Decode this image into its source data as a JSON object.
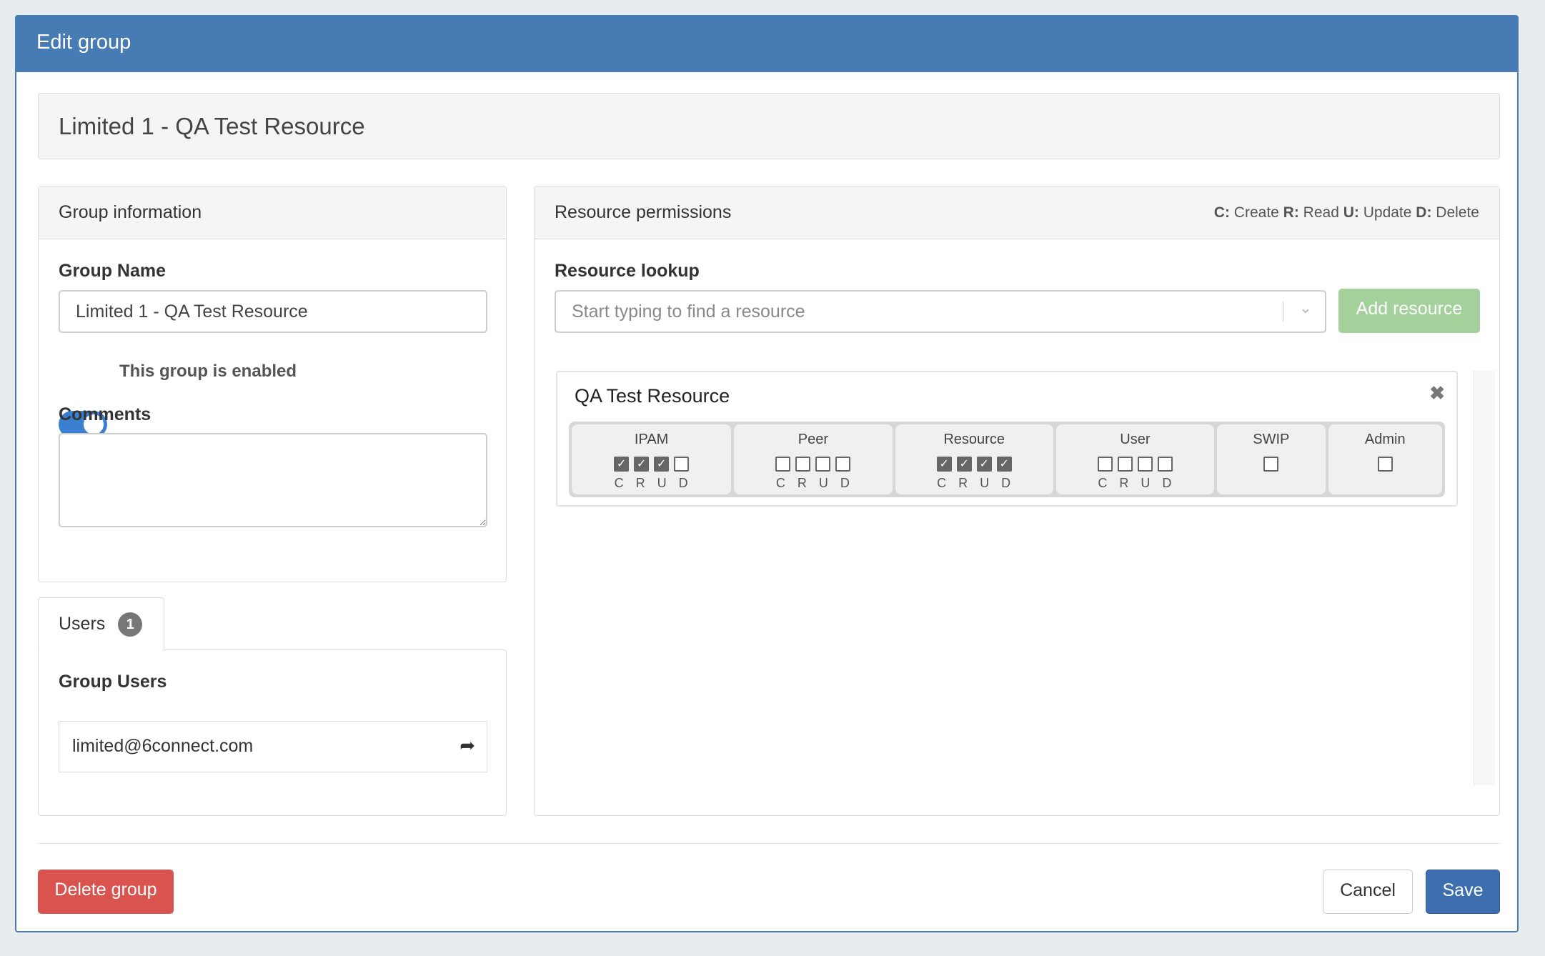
{
  "modal": {
    "title": "Edit group"
  },
  "group_title": "Limited 1 - QA Test Resource",
  "group_info": {
    "header": "Group information",
    "name_label": "Group Name",
    "name_value": "Limited 1 - QA Test Resource",
    "enabled": true,
    "enabled_label": "This group is enabled",
    "comments_label": "Comments",
    "comments_value": ""
  },
  "users_tab": {
    "label": "Users",
    "count": "1",
    "group_users_label": "Group Users",
    "users": [
      "limited@6connect.com"
    ]
  },
  "permissions": {
    "header": "Resource permissions",
    "legend": [
      {
        "key": "C:",
        "text": "Create"
      },
      {
        "key": "R:",
        "text": "Read"
      },
      {
        "key": "U:",
        "text": "Update"
      },
      {
        "key": "D:",
        "text": "Delete"
      }
    ],
    "lookup_label": "Resource lookup",
    "lookup_placeholder": "Start typing to find a resource",
    "add_button": "Add resource",
    "resource": {
      "name": "QA Test Resource",
      "groups": [
        {
          "name": "IPAM",
          "letters": [
            "C",
            "R",
            "U",
            "D"
          ],
          "checked": [
            true,
            true,
            true,
            false
          ]
        },
        {
          "name": "Peer",
          "letters": [
            "C",
            "R",
            "U",
            "D"
          ],
          "checked": [
            false,
            false,
            false,
            false
          ]
        },
        {
          "name": "Resource",
          "letters": [
            "C",
            "R",
            "U",
            "D"
          ],
          "checked": [
            true,
            true,
            true,
            true
          ]
        },
        {
          "name": "User",
          "letters": [
            "C",
            "R",
            "U",
            "D"
          ],
          "checked": [
            false,
            false,
            false,
            false
          ]
        },
        {
          "name": "SWIP",
          "letters": [],
          "checked": [
            false
          ]
        },
        {
          "name": "Admin",
          "letters": [],
          "checked": [
            false
          ]
        }
      ]
    }
  },
  "footer": {
    "delete": "Delete group",
    "cancel": "Cancel",
    "save": "Save"
  },
  "colors": {
    "header": "#477bb4",
    "danger": "#d9534f",
    "success_disabled": "#a3d09b",
    "primary": "#3d6fb0"
  }
}
